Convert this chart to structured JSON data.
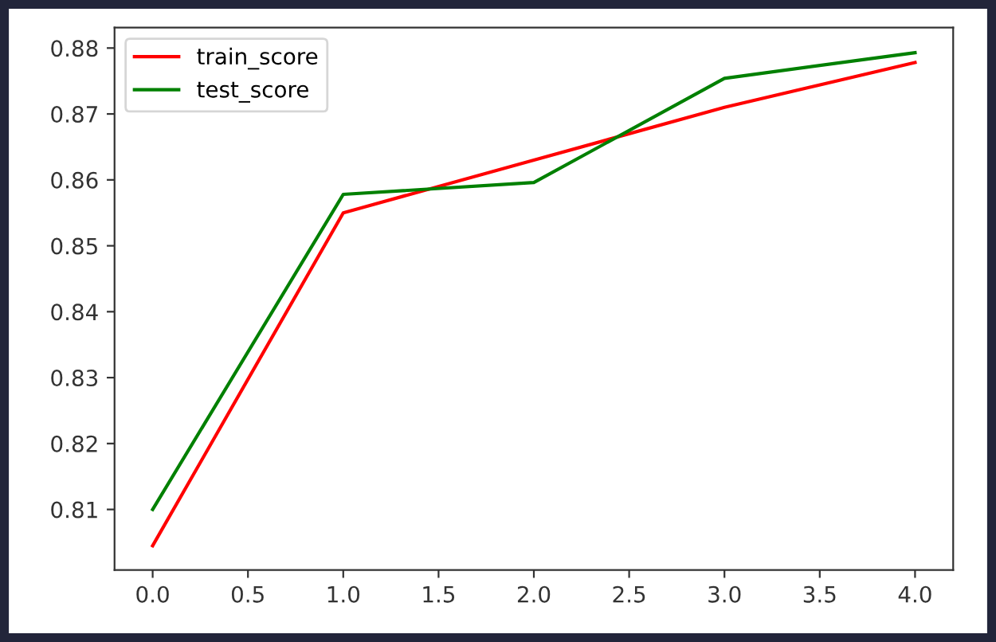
{
  "chart_data": {
    "type": "line",
    "x": [
      0,
      1,
      2,
      3,
      4
    ],
    "series": [
      {
        "name": "train_score",
        "color": "#ff0000",
        "values": [
          0.8045,
          0.855,
          0.863,
          0.871,
          0.8778
        ]
      },
      {
        "name": "test_score",
        "color": "#008000",
        "values": [
          0.81,
          0.8578,
          0.8596,
          0.8754,
          0.8793
        ]
      }
    ],
    "xlim": [
      -0.2,
      4.2
    ],
    "xticks": [
      {
        "value": 0,
        "label": "0.0"
      },
      {
        "value": 0.5,
        "label": "0.5"
      },
      {
        "value": 1,
        "label": "1.0"
      },
      {
        "value": 1.5,
        "label": "1.5"
      },
      {
        "value": 2,
        "label": "2.0"
      },
      {
        "value": 2.5,
        "label": "2.5"
      },
      {
        "value": 3,
        "label": "3.0"
      },
      {
        "value": 3.5,
        "label": "3.5"
      },
      {
        "value": 4,
        "label": "4.0"
      }
    ],
    "ylim": [
      0.8008,
      0.8831
    ],
    "yticks": [
      0.81,
      0.82,
      0.83,
      0.84,
      0.85,
      0.86,
      0.87,
      0.88
    ],
    "grid": false,
    "legend": "top left",
    "marker": "none",
    "line_style": "solid"
  }
}
